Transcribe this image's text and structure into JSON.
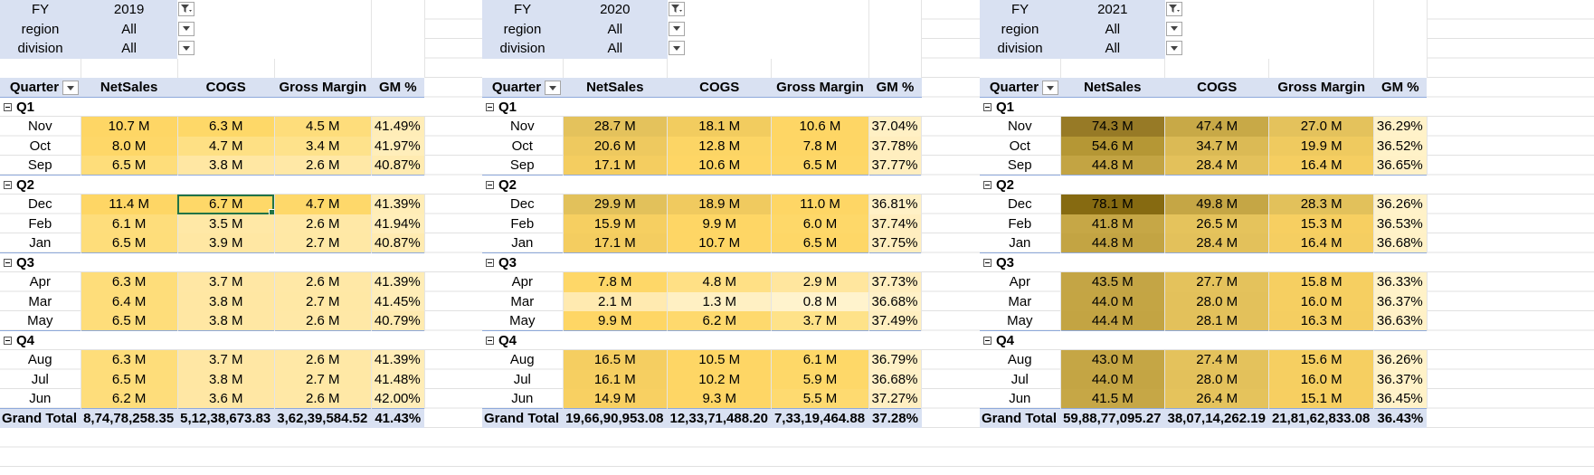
{
  "filter_labels": {
    "fy": "FY",
    "region": "region",
    "division": "division"
  },
  "headers": {
    "quarter": "Quarter",
    "netsales": "NetSales",
    "cogs": "COGS",
    "gm": "Gross Margin",
    "gmp": "GM %"
  },
  "grand_total_label": "Grand Total",
  "pivots": [
    {
      "fy": "2019",
      "region": "All",
      "division": "All",
      "quarters": [
        {
          "name": "Q1",
          "rows": [
            {
              "month": "Nov",
              "ns": "10.7 M",
              "cogs": "6.3 M",
              "gm": "4.5 M",
              "gmp": "41.49%",
              "c": [
                "#fed665",
                "#fed868",
                "#fedd7b",
                "#ffedb8"
              ]
            },
            {
              "month": "Oct",
              "ns": "8.0 M",
              "cogs": "4.7 M",
              "gm": "3.4 M",
              "gmp": "41.97%",
              "c": [
                "#fed768",
                "#fee084",
                "#fee28b",
                "#ffeeba"
              ]
            },
            {
              "month": "Sep",
              "ns": "6.5 M",
              "cogs": "3.8 M",
              "gm": "2.6 M",
              "gmp": "40.87%",
              "c": [
                "#fedd7a",
                "#ffe7a3",
                "#ffe8a6",
                "#ffebb1"
              ]
            }
          ]
        },
        {
          "name": "Q2",
          "rows": [
            {
              "month": "Dec",
              "ns": "11.4 M",
              "cogs": "6.7 M",
              "gm": "4.7 M",
              "gmp": "41.39%",
              "c": [
                "#fed665",
                "#fed868",
                "#fed86a",
                "#ffedb7"
              ]
            },
            {
              "month": "Feb",
              "ns": "6.1 M",
              "cogs": "3.5 M",
              "gm": "2.6 M",
              "gmp": "41.94%",
              "c": [
                "#fedd7b",
                "#ffe8a6",
                "#ffe8a6",
                "#ffeeba"
              ]
            },
            {
              "month": "Jan",
              "ns": "6.5 M",
              "cogs": "3.9 M",
              "gm": "2.7 M",
              "gmp": "40.87%",
              "c": [
                "#fedd7a",
                "#ffe7a3",
                "#ffe8a5",
                "#ffebb1"
              ]
            }
          ]
        },
        {
          "name": "Q3",
          "rows": [
            {
              "month": "Apr",
              "ns": "6.3 M",
              "cogs": "3.7 M",
              "gm": "2.6 M",
              "gmp": "41.39%",
              "c": [
                "#fedd7a",
                "#ffe7a4",
                "#ffe8a6",
                "#ffedb7"
              ]
            },
            {
              "month": "Mar",
              "ns": "6.4 M",
              "cogs": "3.8 M",
              "gm": "2.7 M",
              "gmp": "41.45%",
              "c": [
                "#fedd7a",
                "#ffe7a3",
                "#ffe8a5",
                "#ffedb7"
              ]
            },
            {
              "month": "May",
              "ns": "6.5 M",
              "cogs": "3.8 M",
              "gm": "2.6 M",
              "gmp": "40.79%",
              "c": [
                "#fedd7a",
                "#ffe7a3",
                "#ffe8a6",
                "#ffebb0"
              ]
            }
          ]
        },
        {
          "name": "Q4",
          "rows": [
            {
              "month": "Aug",
              "ns": "6.3 M",
              "cogs": "3.7 M",
              "gm": "2.6 M",
              "gmp": "41.39%",
              "c": [
                "#fedd7a",
                "#ffe7a4",
                "#ffe8a6",
                "#ffedb7"
              ]
            },
            {
              "month": "Jul",
              "ns": "6.5 M",
              "cogs": "3.8 M",
              "gm": "2.7 M",
              "gmp": "41.48%",
              "c": [
                "#fedd7a",
                "#ffe7a3",
                "#ffe8a5",
                "#ffedb7"
              ]
            },
            {
              "month": "Jun",
              "ns": "6.2 M",
              "cogs": "3.6 M",
              "gm": "2.6 M",
              "gmp": "42.00%",
              "c": [
                "#fedd7b",
                "#ffe7a4",
                "#ffe8a6",
                "#ffeeba"
              ]
            }
          ]
        }
      ],
      "total": {
        "ns": "8,74,78,258.35",
        "cogs": "5,12,38,673.83",
        "gm": "3,62,39,584.52",
        "gmp": "41.43%"
      }
    },
    {
      "fy": "2020",
      "region": "All",
      "division": "All",
      "quarters": [
        {
          "name": "Q1",
          "rows": [
            {
              "month": "Nov",
              "ns": "28.7 M",
              "cogs": "18.1 M",
              "gm": "10.6 M",
              "gmp": "37.04%",
              "c": [
                "#e4c25c",
                "#f2cc5f",
                "#fed665",
                "#fff0c4"
              ]
            },
            {
              "month": "Oct",
              "ns": "20.6 M",
              "cogs": "12.8 M",
              "gm": "7.8 M",
              "gmp": "37.78%",
              "c": [
                "#eec95f",
                "#fcd565",
                "#fed665",
                "#ffeebf"
              ]
            },
            {
              "month": "Sep",
              "ns": "17.1 M",
              "cogs": "10.6 M",
              "gm": "6.5 M",
              "gmp": "37.77%",
              "c": [
                "#f4cd60",
                "#fed665",
                "#fed767",
                "#ffeebf"
              ]
            }
          ]
        },
        {
          "name": "Q2",
          "rows": [
            {
              "month": "Dec",
              "ns": "29.9 M",
              "cogs": "18.9 M",
              "gm": "11.0 M",
              "gmp": "36.81%",
              "c": [
                "#e2c15b",
                "#f0ca5f",
                "#fed665",
                "#fff1c6"
              ]
            },
            {
              "month": "Feb",
              "ns": "15.9 M",
              "cogs": "9.9 M",
              "gm": "6.0 M",
              "gmp": "37.74%",
              "c": [
                "#f6cf61",
                "#fed665",
                "#fed869",
                "#ffeebf"
              ]
            },
            {
              "month": "Jan",
              "ns": "17.1 M",
              "cogs": "10.7 M",
              "gm": "6.5 M",
              "gmp": "37.75%",
              "c": [
                "#f4cd60",
                "#fed665",
                "#fed767",
                "#ffeebf"
              ]
            }
          ]
        },
        {
          "name": "Q3",
          "rows": [
            {
              "month": "Apr",
              "ns": "7.8 M",
              "cogs": "4.8 M",
              "gm": "2.9 M",
              "gmp": "37.73%",
              "c": [
                "#fed768",
                "#ffe085",
                "#ffe69e",
                "#ffeebf"
              ]
            },
            {
              "month": "Mar",
              "ns": "2.1 M",
              "cogs": "1.3 M",
              "gm": "0.8 M",
              "gmp": "36.68%",
              "c": [
                "#ffeab0",
                "#fff0c3",
                "#fff3cd",
                "#fff1c7"
              ]
            },
            {
              "month": "May",
              "ns": "9.9 M",
              "cogs": "6.2 M",
              "gm": "3.7 M",
              "gmp": "37.49%",
              "c": [
                "#fed665",
                "#fed96d",
                "#fee289",
                "#ffefc0"
              ]
            }
          ]
        },
        {
          "name": "Q4",
          "rows": [
            {
              "month": "Aug",
              "ns": "16.5 M",
              "cogs": "10.5 M",
              "gm": "6.1 M",
              "gmp": "36.79%",
              "c": [
                "#f5ce61",
                "#fed665",
                "#fed868",
                "#fff1c6"
              ]
            },
            {
              "month": "Jul",
              "ns": "16.1 M",
              "cogs": "10.2 M",
              "gm": "5.9 M",
              "gmp": "36.68%",
              "c": [
                "#f6cf61",
                "#fed665",
                "#fed869",
                "#fff1c7"
              ]
            },
            {
              "month": "Jun",
              "ns": "14.9 M",
              "cogs": "9.3 M",
              "gm": "5.5 M",
              "gmp": "37.27%",
              "c": [
                "#f8d062",
                "#fed665",
                "#feda70",
                "#ffefc2"
              ]
            }
          ]
        }
      ],
      "total": {
        "ns": "19,66,90,953.08",
        "cogs": "12,33,71,488.20",
        "gm": "7,33,19,464.88",
        "gmp": "37.28%"
      }
    },
    {
      "fy": "2021",
      "region": "All",
      "division": "All",
      "quarters": [
        {
          "name": "Q1",
          "rows": [
            {
              "month": "Nov",
              "ns": "74.3 M",
              "cogs": "47.4 M",
              "gm": "27.0 M",
              "gmp": "36.29%",
              "c": [
                "#977a26",
                "#c8a947",
                "#e4c25c",
                "#fff2c9"
              ]
            },
            {
              "month": "Oct",
              "ns": "54.6 M",
              "cogs": "34.7 M",
              "gm": "19.9 M",
              "gmp": "36.52%",
              "c": [
                "#b59735",
                "#dbba55",
                "#efca5f",
                "#fff2c8"
              ]
            },
            {
              "month": "Sep",
              "ns": "44.8 M",
              "cogs": "28.4 M",
              "gm": "16.4 M",
              "gmp": "36.65%",
              "c": [
                "#c3a443",
                "#e3c15b",
                "#f5ce61",
                "#fff1c7"
              ]
            }
          ]
        },
        {
          "name": "Q2",
          "rows": [
            {
              "month": "Dec",
              "ns": "78.1 M",
              "cogs": "49.8 M",
              "gm": "28.3 M",
              "gmp": "36.26%",
              "c": [
                "#866a11",
                "#c5a645",
                "#e2c15b",
                "#fff2c9"
              ]
            },
            {
              "month": "Feb",
              "ns": "41.8 M",
              "cogs": "26.5 M",
              "gm": "15.3 M",
              "gmp": "36.53%",
              "c": [
                "#c6a746",
                "#e5c35c",
                "#f7cf61",
                "#fff2c8"
              ]
            },
            {
              "month": "Jan",
              "ns": "44.8 M",
              "cogs": "28.4 M",
              "gm": "16.4 M",
              "gmp": "36.68%",
              "c": [
                "#c3a443",
                "#e3c15b",
                "#f5ce61",
                "#fff1c7"
              ]
            }
          ]
        },
        {
          "name": "Q3",
          "rows": [
            {
              "month": "Apr",
              "ns": "43.5 M",
              "cogs": "27.7 M",
              "gm": "15.8 M",
              "gmp": "36.33%",
              "c": [
                "#c4a545",
                "#e4c25c",
                "#f6cf61",
                "#fff2c9"
              ]
            },
            {
              "month": "Mar",
              "ns": "44.0 M",
              "cogs": "28.0 M",
              "gm": "16.0 M",
              "gmp": "36.37%",
              "c": [
                "#c4a544",
                "#e3c15b",
                "#f6cf61",
                "#fff2c8"
              ]
            },
            {
              "month": "May",
              "ns": "44.4 M",
              "cogs": "28.1 M",
              "gm": "16.3 M",
              "gmp": "36.63%",
              "c": [
                "#c3a443",
                "#e3c15b",
                "#f5ce61",
                "#fff1c7"
              ]
            }
          ]
        },
        {
          "name": "Q4",
          "rows": [
            {
              "month": "Aug",
              "ns": "43.0 M",
              "cogs": "27.4 M",
              "gm": "15.6 M",
              "gmp": "36.26%",
              "c": [
                "#c5a645",
                "#e4c25c",
                "#f6cf61",
                "#fff2c9"
              ]
            },
            {
              "month": "Jul",
              "ns": "44.0 M",
              "cogs": "28.0 M",
              "gm": "16.0 M",
              "gmp": "36.37%",
              "c": [
                "#c4a544",
                "#e3c15b",
                "#f6cf61",
                "#fff2c8"
              ]
            },
            {
              "month": "Jun",
              "ns": "41.5 M",
              "cogs": "26.4 M",
              "gm": "15.1 M",
              "gmp": "36.45%",
              "c": [
                "#c6a746",
                "#e5c35c",
                "#f7cf61",
                "#fff2c8"
              ]
            }
          ]
        }
      ],
      "total": {
        "ns": "59,88,77,095.27",
        "cogs": "38,07,14,262.19",
        "gm": "21,81,62,833.08",
        "gmp": "36.43%"
      }
    }
  ],
  "selected_cell": {
    "pivot": 0,
    "quarter": 1,
    "row": 0,
    "col": "cogs"
  }
}
